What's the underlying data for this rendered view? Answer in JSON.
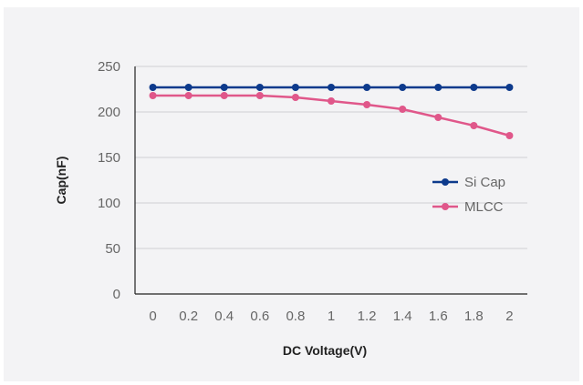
{
  "chart_data": {
    "type": "line",
    "title": "",
    "xlabel": "DC Voltage(V)",
    "ylabel": "Cap(nF)",
    "x": [
      "0",
      "0.2",
      "0.4",
      "0.6",
      "0.8",
      "1",
      "1.2",
      "1.4",
      "1.6",
      "1.8",
      "2"
    ],
    "yticks": [
      "0",
      "50",
      "100",
      "150",
      "200",
      "250"
    ],
    "ylim": [
      0,
      250
    ],
    "grid": true,
    "legend_position": "right",
    "series": [
      {
        "name": "Si Cap",
        "color": "#0d3a8c",
        "values": [
          227,
          227,
          227,
          227,
          227,
          227,
          227,
          227,
          227,
          227,
          227
        ]
      },
      {
        "name": "MLCC",
        "color": "#e0578a",
        "values": [
          218,
          218,
          218,
          218,
          216,
          212,
          208,
          203,
          194,
          185,
          174
        ]
      }
    ]
  }
}
